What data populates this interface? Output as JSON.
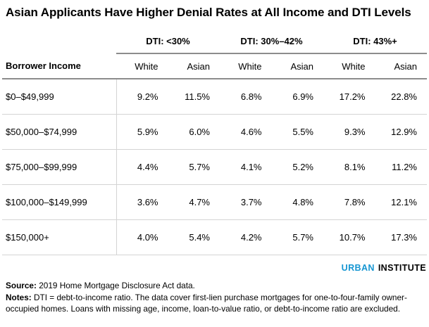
{
  "title": "Asian Applicants Have Higher Denial Rates at All Income and DTI Levels",
  "table": {
    "row_header": "Borrower Income",
    "groups": [
      {
        "label": "DTI: <30%"
      },
      {
        "label": "DTI: 30%–42%"
      },
      {
        "label": "DTI: 43%+"
      }
    ],
    "sub_headers": [
      "White",
      "Asian",
      "White",
      "Asian",
      "White",
      "Asian"
    ],
    "rows": [
      {
        "income": "$0–$49,999",
        "values": [
          "9.2%",
          "11.5%",
          "6.8%",
          "6.9%",
          "17.2%",
          "22.8%"
        ]
      },
      {
        "income": "$50,000–$74,999",
        "values": [
          "5.9%",
          "6.0%",
          "4.6%",
          "5.5%",
          "9.3%",
          "12.9%"
        ]
      },
      {
        "income": "$75,000–$99,999",
        "values": [
          "4.4%",
          "5.7%",
          "4.1%",
          "5.2%",
          "8.1%",
          "11.2%"
        ]
      },
      {
        "income": "$100,000–$149,999",
        "values": [
          "3.6%",
          "4.7%",
          "3.7%",
          "4.8%",
          "7.8%",
          "12.1%"
        ]
      },
      {
        "income": "$150,000+",
        "values": [
          "4.0%",
          "5.4%",
          "4.2%",
          "5.7%",
          "10.7%",
          "17.3%"
        ]
      }
    ]
  },
  "logo": {
    "part1": "URBAN",
    "part2": "INSTITUTE",
    "accent_color": "#1696d2"
  },
  "footer": {
    "source_label": "Source:",
    "source_text": " 2019 Home Mortgage Disclosure Act data.",
    "notes_label": "Notes:",
    "notes_text": " DTI = debt-to-income ratio. The data cover first-lien purchase mortgages for one-to-four-family owner-occupied homes. Loans with missing age, income, loan-to-value ratio, or debt-to-income ratio are excluded."
  },
  "chart_data": {
    "type": "table",
    "title": "Asian Applicants Have Higher Denial Rates at All Income and DTI Levels",
    "column_groups": [
      "DTI: <30%",
      "DTI: 30%–42%",
      "DTI: 43%+"
    ],
    "columns": [
      "Borrower Income",
      "White",
      "Asian",
      "White",
      "Asian",
      "White",
      "Asian"
    ],
    "unit": "percent denial rate",
    "rows": [
      {
        "income": "$0–$49,999",
        "dti_lt30": {
          "white": 9.2,
          "asian": 11.5
        },
        "dti_30_42": {
          "white": 6.8,
          "asian": 6.9
        },
        "dti_43plus": {
          "white": 17.2,
          "asian": 22.8
        }
      },
      {
        "income": "$50,000–$74,999",
        "dti_lt30": {
          "white": 5.9,
          "asian": 6.0
        },
        "dti_30_42": {
          "white": 4.6,
          "asian": 5.5
        },
        "dti_43plus": {
          "white": 9.3,
          "asian": 12.9
        }
      },
      {
        "income": "$75,000–$99,999",
        "dti_lt30": {
          "white": 4.4,
          "asian": 5.7
        },
        "dti_30_42": {
          "white": 4.1,
          "asian": 5.2
        },
        "dti_43plus": {
          "white": 8.1,
          "asian": 11.2
        }
      },
      {
        "income": "$100,000–$149,999",
        "dti_lt30": {
          "white": 3.6,
          "asian": 4.7
        },
        "dti_30_42": {
          "white": 3.7,
          "asian": 4.8
        },
        "dti_43plus": {
          "white": 7.8,
          "asian": 12.1
        }
      },
      {
        "income": "$150,000+",
        "dti_lt30": {
          "white": 4.0,
          "asian": 5.4
        },
        "dti_30_42": {
          "white": 4.2,
          "asian": 5.7
        },
        "dti_43plus": {
          "white": 10.7,
          "asian": 17.3
        }
      }
    ],
    "source": "2019 Home Mortgage Disclosure Act data.",
    "notes": "DTI = debt-to-income ratio. The data cover first-lien purchase mortgages for one-to-four-family owner-occupied homes. Loans with missing age, income, loan-to-value ratio, or debt-to-income ratio are excluded."
  }
}
